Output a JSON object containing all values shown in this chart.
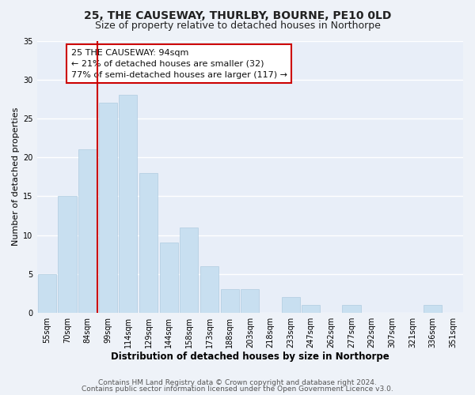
{
  "title": "25, THE CAUSEWAY, THURLBY, BOURNE, PE10 0LD",
  "subtitle": "Size of property relative to detached houses in Northorpe",
  "xlabel": "Distribution of detached houses by size in Northorpe",
  "ylabel": "Number of detached properties",
  "bar_color": "#c8dff0",
  "bar_edge_color": "#b0cce0",
  "categories": [
    "55sqm",
    "70sqm",
    "84sqm",
    "99sqm",
    "114sqm",
    "129sqm",
    "144sqm",
    "158sqm",
    "173sqm",
    "188sqm",
    "203sqm",
    "218sqm",
    "233sqm",
    "247sqm",
    "262sqm",
    "277sqm",
    "292sqm",
    "307sqm",
    "321sqm",
    "336sqm",
    "351sqm"
  ],
  "values": [
    5,
    15,
    21,
    27,
    28,
    18,
    9,
    11,
    6,
    3,
    3,
    0,
    2,
    1,
    0,
    1,
    0,
    0,
    0,
    1,
    0
  ],
  "ylim": [
    0,
    35
  ],
  "yticks": [
    0,
    5,
    10,
    15,
    20,
    25,
    30,
    35
  ],
  "marker_line_color": "#cc0000",
  "annotation_text": "25 THE CAUSEWAY: 94sqm\n← 21% of detached houses are smaller (32)\n77% of semi-detached houses are larger (117) →",
  "annotation_box_edge_color": "#cc0000",
  "annotation_box_face_color": "#ffffff",
  "footer_line1": "Contains HM Land Registry data © Crown copyright and database right 2024.",
  "footer_line2": "Contains public sector information licensed under the Open Government Licence v3.0.",
  "background_color": "#eef2f8",
  "plot_bg_color": "#e8eef8",
  "grid_color": "#ffffff",
  "title_fontsize": 10,
  "subtitle_fontsize": 9,
  "xlabel_fontsize": 8.5,
  "ylabel_fontsize": 8,
  "tick_fontsize": 7,
  "annotation_fontsize": 8,
  "footer_fontsize": 6.5
}
